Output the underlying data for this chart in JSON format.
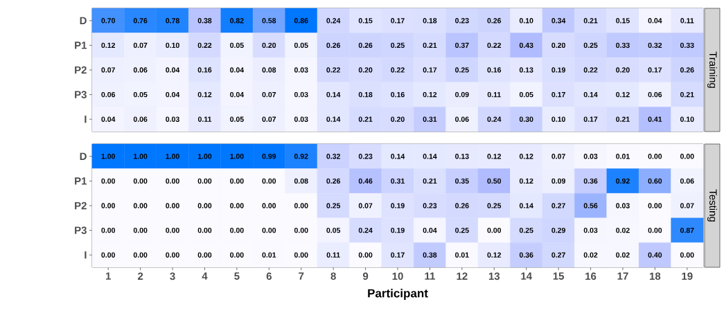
{
  "chart_data": [
    {
      "type": "heatmap",
      "title": "Training",
      "tick_labels": "y",
      "categories": [
        "1",
        "2",
        "3",
        "4",
        "5",
        "6",
        "7",
        "8",
        "9",
        "10",
        "11",
        "12",
        "13",
        "14",
        "15",
        "16",
        "17",
        "18",
        "19"
      ],
      "y_categories": [
        "D",
        "P1",
        "P2",
        "P3",
        "I"
      ],
      "cells": [
        [
          0.7,
          0.76,
          0.78,
          0.38,
          0.82,
          0.58,
          0.86,
          0.24,
          0.15,
          0.17,
          0.18,
          0.23,
          0.26,
          0.1,
          0.34,
          0.21,
          0.15,
          0.04,
          0.11
        ],
        [
          0.12,
          0.07,
          0.1,
          0.22,
          0.05,
          0.2,
          0.05,
          0.26,
          0.26,
          0.25,
          0.21,
          0.37,
          0.22,
          0.43,
          0.2,
          0.25,
          0.33,
          0.32,
          0.33
        ],
        [
          0.07,
          0.06,
          0.04,
          0.16,
          0.04,
          0.08,
          0.03,
          0.22,
          0.2,
          0.22,
          0.17,
          0.25,
          0.16,
          0.13,
          0.19,
          0.22,
          0.2,
          0.17,
          0.26
        ],
        [
          0.06,
          0.05,
          0.04,
          0.12,
          0.04,
          0.07,
          0.03,
          0.14,
          0.18,
          0.16,
          0.12,
          0.09,
          0.11,
          0.05,
          0.17,
          0.14,
          0.12,
          0.06,
          0.21
        ],
        [
          0.04,
          0.06,
          0.03,
          0.11,
          0.05,
          0.07,
          0.03,
          0.14,
          0.21,
          0.2,
          0.31,
          0.06,
          0.24,
          0.3,
          0.1,
          0.17,
          0.21,
          0.41,
          0.1
        ]
      ],
      "cell_labels": [
        [
          "0.70",
          "0.76",
          "0.78",
          "0.38",
          "0.82",
          "0.58",
          "0.86",
          "0.24",
          "0.15",
          "0.17",
          "0.18",
          "0.23",
          "0.26",
          "0.10",
          "0.34",
          "0.21",
          "0.15",
          "0.04",
          "0.11"
        ],
        [
          "0.12",
          "0.07",
          "0.10",
          "0.22",
          "0.05",
          "0.20",
          "0.05",
          "0.26",
          "0.26",
          "0.25",
          "0.21",
          "0.37",
          "0.22",
          "0.43",
          "0.20",
          "0.25",
          "0.33",
          "0.32",
          "0.33"
        ],
        [
          "0.07",
          "0.06",
          "0.04",
          "0.16",
          "0.04",
          "0.08",
          "0.03",
          "0.22",
          "0.20",
          "0.22",
          "0.17",
          "0.25",
          "0.16",
          "0.13",
          "0.19",
          "0.22",
          "0.20",
          "0.17",
          "0.26"
        ],
        [
          "0.06",
          "0.05",
          "0.04",
          "0.12",
          "0.04",
          "0.07",
          "0.03",
          "0.14",
          "0.18",
          "0.16",
          "0.12",
          "0.09",
          "0.11",
          "0.05",
          "0.17",
          "0.14",
          "0.12",
          "0.06",
          "0.21"
        ],
        [
          "0.04",
          "0.06",
          "0.03",
          "0.11",
          "0.05",
          "0.07",
          "0.03",
          "0.14",
          "0.21",
          "0.20",
          "0.31",
          "0.06",
          "0.24",
          "0.30",
          "0.10",
          "0.17",
          "0.21",
          "0.41",
          "0.10"
        ]
      ]
    },
    {
      "type": "heatmap",
      "title": "Testing",
      "xlabel": "Participant",
      "categories": [
        "1",
        "2",
        "3",
        "4",
        "5",
        "6",
        "7",
        "8",
        "9",
        "10",
        "11",
        "12",
        "13",
        "14",
        "15",
        "16",
        "17",
        "18",
        "19"
      ],
      "y_categories": [
        "D",
        "P1",
        "P2",
        "P3",
        "I"
      ],
      "cells": [
        [
          1.0,
          1.0,
          1.0,
          1.0,
          1.0,
          0.99,
          0.92,
          0.32,
          0.23,
          0.14,
          0.14,
          0.13,
          0.12,
          0.12,
          0.07,
          0.03,
          0.01,
          0.0,
          0.0
        ],
        [
          0.0,
          0.0,
          0.0,
          0.0,
          0.0,
          0.0,
          0.08,
          0.26,
          0.46,
          0.31,
          0.21,
          0.35,
          0.5,
          0.12,
          0.09,
          0.36,
          0.92,
          0.6,
          0.06
        ],
        [
          0.0,
          0.0,
          0.0,
          0.0,
          0.0,
          0.0,
          0.0,
          0.25,
          0.07,
          0.19,
          0.23,
          0.26,
          0.25,
          0.14,
          0.27,
          0.56,
          0.03,
          0.0,
          0.07
        ],
        [
          0.0,
          0.0,
          0.0,
          0.0,
          0.0,
          0.0,
          0.0,
          0.05,
          0.24,
          0.19,
          0.04,
          0.25,
          0.0,
          0.25,
          0.29,
          0.03,
          0.02,
          0.0,
          0.87
        ],
        [
          0.0,
          0.0,
          0.0,
          0.0,
          0.0,
          0.01,
          0.0,
          0.11,
          0.0,
          0.17,
          0.38,
          0.01,
          0.12,
          0.36,
          0.27,
          0.02,
          0.02,
          0.4,
          0.0
        ]
      ],
      "cell_labels": [
        [
          "1.00",
          "1.00",
          "1.00",
          "1.00",
          "1.00",
          "0.99",
          "0.92",
          "0.32",
          "0.23",
          "0.14",
          "0.14",
          "0.13",
          "0.12",
          "0.12",
          "0.07",
          "0.03",
          "0.01",
          "0.00",
          "0.00"
        ],
        [
          "0.00",
          "0.00",
          "0.00",
          "0.00",
          "0.00",
          "0.00",
          "0.08",
          "0.26",
          "0.46",
          "0.31",
          "0.21",
          "0.35",
          "0.50",
          "0.12",
          "0.09",
          "0.36",
          "0.92",
          "0.60",
          "0.06"
        ],
        [
          "0.00",
          "0.00",
          "0.00",
          "0.00",
          "0.00",
          "0.00",
          "0.00",
          "0.25",
          "0.07",
          "0.19",
          "0.23",
          "0.26",
          "0.25",
          "0.14",
          "0.27",
          "0.56",
          "0.03",
          "0.00",
          "0.07"
        ],
        [
          "0.00",
          "0.00",
          "0.00",
          "0.00",
          "0.00",
          "0.00",
          "0.00",
          "0.05",
          "0.24",
          "0.19",
          "0.04",
          "0.25",
          "0.00",
          "0.25",
          "0.29",
          "0.03",
          "0.02",
          "0.00",
          "0.87"
        ],
        [
          "0.00",
          "0.00",
          "0.00",
          "0.00",
          "0.00",
          "0.01",
          "0.00",
          "0.11",
          "0.00",
          "0.17",
          "0.38",
          "0.01",
          "0.12",
          "0.36",
          "0.27",
          "0.02",
          "0.02",
          "0.40",
          "0.00"
        ]
      ]
    }
  ]
}
